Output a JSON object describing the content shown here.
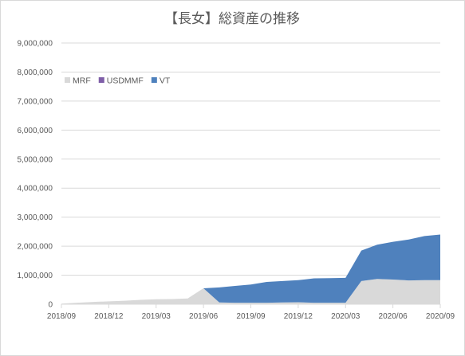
{
  "chart_data": {
    "type": "area",
    "stacked": true,
    "title": "【長女】総資産の推移",
    "xlabel": "",
    "ylabel": "",
    "ylim": [
      0,
      9000000
    ],
    "y_ticks": [
      "0",
      "1,000,000",
      "2,000,000",
      "3,000,000",
      "4,000,000",
      "5,000,000",
      "6,000,000",
      "7,000,000",
      "8,000,000",
      "9,000,000"
    ],
    "y_tick_values": [
      0,
      1000000,
      2000000,
      3000000,
      4000000,
      5000000,
      6000000,
      7000000,
      8000000,
      9000000
    ],
    "x_tick_labels": [
      "2018/09",
      "2018/12",
      "2019/03",
      "2019/06",
      "2019/09",
      "2019/12",
      "2020/03",
      "2020/06",
      "2020/09"
    ],
    "x": [
      "2018/09",
      "2018/10",
      "2018/11",
      "2018/12",
      "2019/01",
      "2019/02",
      "2019/03",
      "2019/04",
      "2019/05",
      "2019/06",
      "2019/07",
      "2019/08",
      "2019/09",
      "2019/10",
      "2019/11",
      "2019/12",
      "2020/01",
      "2020/02",
      "2020/03",
      "2020/04",
      "2020/05",
      "2020/06",
      "2020/07",
      "2020/08",
      "2020/09"
    ],
    "grid": true,
    "legend_position": "top-left",
    "series": [
      {
        "name": "MRF",
        "color": "#d9d9d9",
        "values": [
          20000,
          50000,
          80000,
          100000,
          120000,
          150000,
          170000,
          180000,
          200000,
          550000,
          60000,
          50000,
          50000,
          50000,
          60000,
          70000,
          50000,
          50000,
          50000,
          800000,
          870000,
          850000,
          820000,
          830000,
          830000
        ]
      },
      {
        "name": "USDMMF",
        "color": "#7f5ea8",
        "values": [
          0,
          0,
          0,
          0,
          0,
          0,
          0,
          0,
          0,
          0,
          0,
          0,
          0,
          0,
          0,
          0,
          0,
          0,
          0,
          0,
          0,
          0,
          0,
          0,
          0
        ]
      },
      {
        "name": "VT",
        "color": "#4f81bd",
        "values": [
          0,
          0,
          0,
          0,
          0,
          0,
          0,
          0,
          0,
          0,
          520000,
          580000,
          630000,
          720000,
          740000,
          760000,
          840000,
          850000,
          860000,
          1050000,
          1180000,
          1300000,
          1410000,
          1520000,
          1570000
        ]
      }
    ]
  }
}
